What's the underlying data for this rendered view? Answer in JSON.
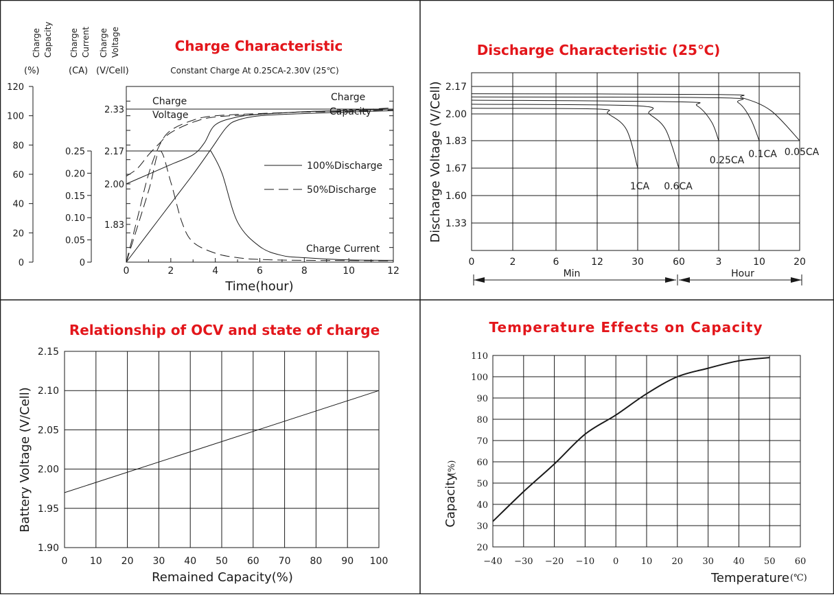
{
  "charts": [
    {
      "id": "charge",
      "title": "Charge Characteristic",
      "subtitle": "Constant Charge At 0.25CA-2.30V  (25℃)",
      "xlabel": "Time(hour)",
      "x_ticks": [
        "0",
        "2",
        "4",
        "6",
        "8",
        "10",
        "12"
      ],
      "axis_headers": [
        {
          "lines": [
            "Charge",
            "Capacity"
          ],
          "unit": "(%)"
        },
        {
          "lines": [
            "Charge",
            "Current"
          ],
          "unit": "(CA)"
        },
        {
          "lines": [
            "Charge",
            "Voltage"
          ],
          "unit": "(V/Cell)"
        }
      ],
      "capacity_ticks": [
        "0",
        "20",
        "40",
        "60",
        "80",
        "100",
        "120"
      ],
      "current_ticks": [
        "0",
        "0.05",
        "0.10",
        "0.15",
        "0.20",
        "0.25"
      ],
      "voltage_ticks": [
        "1.83",
        "2.00",
        "2.17",
        "2.33"
      ],
      "legend": [
        {
          "label": "100%Discharge",
          "style": "solid"
        },
        {
          "label": "50%Discharge",
          "style": "dashed"
        }
      ],
      "annotations": [
        "Charge",
        "Voltage",
        "Charge",
        "Capacity",
        "Charge Current"
      ]
    },
    {
      "id": "discharge",
      "title": "Discharge Characteristic  (25℃)",
      "ylabel": "Discharge Voltage (V/Cell)",
      "y_ticks": [
        "1.33",
        "1.60",
        "1.67",
        "1.83",
        "2.00",
        "2.17"
      ],
      "x_ticks": [
        "0",
        "2",
        "6",
        "12",
        "30",
        "60",
        "3",
        "10",
        "20"
      ],
      "min_label": "Min",
      "hour_label": "Hour",
      "curve_labels": [
        "1CA",
        "0.6CA",
        "0.25CA",
        "0.1CA",
        "0.05CA"
      ]
    },
    {
      "id": "ocv",
      "title": "Relationship of OCV and state of charge",
      "ylabel": "Battery Voltage (V/Cell)",
      "xlabel": "Remained Capacity(%)",
      "y_ticks": [
        "1.90",
        "1.95",
        "2.00",
        "2.05",
        "2.10",
        "2.15"
      ],
      "x_ticks": [
        "0",
        "10",
        "20",
        "30",
        "40",
        "50",
        "60",
        "70",
        "80",
        "90",
        "100"
      ]
    },
    {
      "id": "temperature",
      "title": "Temperature Effects on Capacity",
      "ylabel": "Capacity",
      "ylabel_unit": "(%)",
      "xlabel": "Temperature",
      "xlabel_unit": "(℃)",
      "y_ticks": [
        "20",
        "30",
        "40",
        "50",
        "60",
        "70",
        "80",
        "90",
        "100",
        "110"
      ],
      "x_ticks": [
        "−40",
        "−30",
        "−20",
        "−10",
        "0",
        "10",
        "20",
        "30",
        "40",
        "50",
        "60"
      ]
    }
  ],
  "chart_data": [
    {
      "type": "line",
      "title": "Charge Characteristic",
      "xlabel": "Time(hour)",
      "xlim": [
        0,
        12
      ],
      "y_axes": {
        "capacity_pct": [
          0,
          120
        ],
        "current_CA": [
          0,
          0.25
        ],
        "voltage_V_per_cell": [
          1.83,
          2.33
        ]
      },
      "series": [
        {
          "name": "100%Discharge",
          "quantity": "voltage",
          "x": [
            0,
            1,
            2,
            3,
            3.5,
            4,
            5,
            6,
            8,
            10,
            12
          ],
          "y": [
            2.0,
            2.05,
            2.1,
            2.15,
            2.2,
            2.27,
            2.3,
            2.31,
            2.32,
            2.325,
            2.33
          ]
        },
        {
          "name": "100%Discharge",
          "quantity": "capacity",
          "x": [
            0,
            1,
            2,
            3,
            3.8,
            4.5,
            5,
            6,
            8,
            10,
            12
          ],
          "y": [
            0,
            20,
            40,
            60,
            77,
            92,
            97,
            100,
            101.5,
            102.5,
            103.5
          ]
        },
        {
          "name": "100%Discharge",
          "quantity": "current",
          "x": [
            0,
            3.8,
            4.3,
            5,
            6,
            7,
            8,
            10,
            12
          ],
          "y": [
            0.25,
            0.25,
            0.2,
            0.09,
            0.035,
            0.015,
            0.01,
            0.005,
            0.004
          ]
        },
        {
          "name": "50%Discharge",
          "quantity": "voltage",
          "x": [
            0,
            0.5,
            1,
            1.5,
            2,
            3,
            4,
            6,
            8,
            10,
            12
          ],
          "y": [
            2.04,
            2.08,
            2.15,
            2.2,
            2.24,
            2.28,
            2.3,
            2.31,
            2.32,
            2.325,
            2.335
          ]
        },
        {
          "name": "50%Discharge",
          "quantity": "capacity",
          "x": [
            0,
            0.5,
            1,
            1.5,
            2,
            3,
            4,
            6,
            8,
            10,
            12
          ],
          "y": [
            0,
            30,
            60,
            80,
            90,
            97,
            100,
            101.5,
            102.5,
            103,
            104
          ]
        },
        {
          "name": "50%Discharge",
          "quantity": "current",
          "x": [
            0,
            1,
            1.5,
            2,
            2.5,
            3,
            4,
            5,
            6,
            8,
            12
          ],
          "y": [
            0,
            0.16,
            0.25,
            0.18,
            0.09,
            0.045,
            0.02,
            0.01,
            0.006,
            0.004,
            0.003
          ]
        }
      ]
    },
    {
      "type": "line",
      "title": "Discharge Characteristic  (25℃)",
      "ylabel": "Discharge Voltage (V/Cell)",
      "x_categories": [
        "0 min",
        "2 min",
        "6 min",
        "12 min",
        "30 min",
        "60 min",
        "3 h",
        "10 h",
        "20 h"
      ],
      "series": [
        {
          "name": "1CA",
          "x": [
            "0 min",
            "12 min",
            "18 min",
            "26 min",
            "30 min"
          ],
          "y": [
            2.035,
            2.03,
            2.0,
            1.9,
            1.67
          ]
        },
        {
          "name": "0.6CA",
          "x": [
            "0 min",
            "30 min",
            "40 min",
            "52 min",
            "60 min"
          ],
          "y": [
            2.06,
            2.05,
            2.0,
            1.9,
            1.67
          ]
        },
        {
          "name": "0.25CA",
          "x": [
            "0 min",
            "60 min",
            "90 min",
            "2.5 h",
            "3 h"
          ],
          "y": [
            2.085,
            2.075,
            2.05,
            1.95,
            1.83
          ]
        },
        {
          "name": "0.1CA",
          "x": [
            "0 min",
            "3 h",
            "5 h",
            "8 h",
            "10 h"
          ],
          "y": [
            2.105,
            2.1,
            2.07,
            1.97,
            1.83
          ]
        },
        {
          "name": "0.05CA",
          "x": [
            "0 min",
            "3 h",
            "6 h",
            "12 h",
            "20 h"
          ],
          "y": [
            2.125,
            2.12,
            2.1,
            2.02,
            1.83
          ]
        }
      ]
    },
    {
      "type": "line",
      "title": "Relationship of OCV and state of charge",
      "xlabel": "Remained Capacity(%)",
      "ylabel": "Battery Voltage (V/Cell)",
      "xlim": [
        0,
        100
      ],
      "ylim": [
        1.9,
        2.15
      ],
      "series": [
        {
          "x": [
            0,
            100
          ],
          "y": [
            1.97,
            2.1
          ]
        }
      ]
    },
    {
      "type": "line",
      "title": "Temperature Effects on Capacity",
      "xlabel": "Temperature(℃)",
      "ylabel": "Capacity(%)",
      "xlim": [
        -40,
        60
      ],
      "ylim": [
        20,
        110
      ],
      "series": [
        {
          "x": [
            -40,
            -30,
            -20,
            -10,
            0,
            10,
            20,
            30,
            40,
            50
          ],
          "y": [
            32,
            46,
            59,
            73,
            82,
            92,
            100,
            104,
            107.5,
            109
          ]
        }
      ]
    }
  ]
}
